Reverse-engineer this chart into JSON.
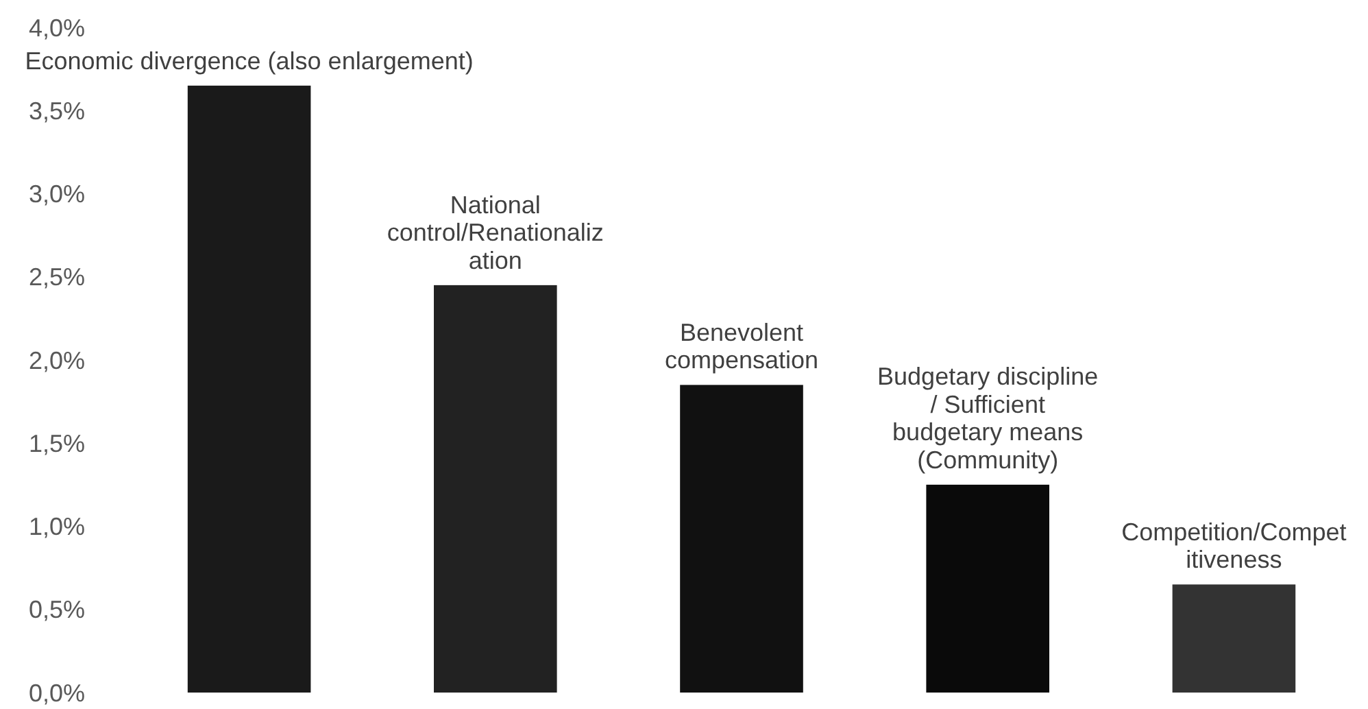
{
  "chart_data": {
    "type": "bar",
    "categories": [
      "Economic divergence (also enlargement)",
      "National control/Renationalization",
      "Benevolent compensation",
      "Budgetary discipline / Sufficient budgetary means (Community)",
      "Competition/Competitiveness"
    ],
    "values": [
      3.65,
      2.45,
      1.85,
      1.25,
      0.65
    ],
    "colors": [
      "#1a1a1a",
      "#222222",
      "#111111",
      "#0a0a0a",
      "#333333"
    ],
    "ylim": [
      0,
      4
    ],
    "yticks": [
      {
        "value": 0,
        "label": "0,0%"
      },
      {
        "value": 0.5,
        "label": "0,5%"
      },
      {
        "value": 1,
        "label": "1,0%"
      },
      {
        "value": 1.5,
        "label": "1,5%"
      },
      {
        "value": 2,
        "label": "2,0%"
      },
      {
        "value": 2.5,
        "label": "2,5%"
      },
      {
        "value": 3,
        "label": "3,0%"
      },
      {
        "value": 3.5,
        "label": "3,5%"
      },
      {
        "value": 4,
        "label": "4,0%"
      }
    ],
    "grid": false
  }
}
